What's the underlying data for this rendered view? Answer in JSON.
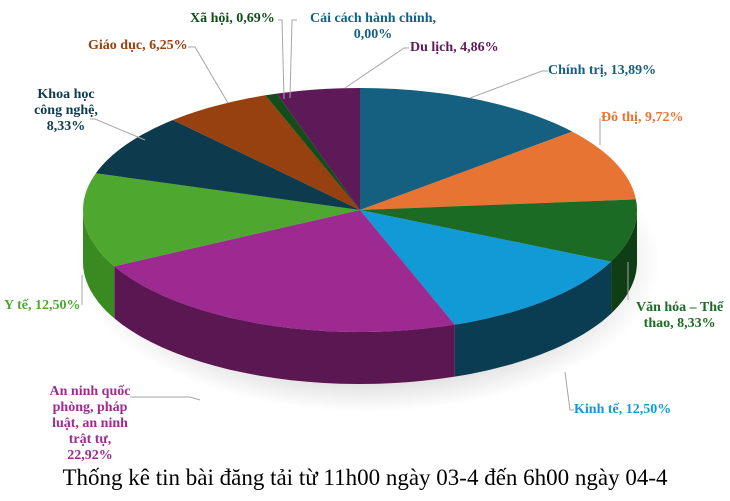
{
  "chart_data": {
    "type": "pie",
    "title": "Thống kê tin bài đăng tải từ 11h00 ngày 03-4 đến 6h00 ngày 04-4",
    "three_d": true,
    "slices": [
      {
        "label": "Chính trị",
        "value": 13.89,
        "display": "Chính trị, 13,89%",
        "color": "#155f80",
        "side": "#0e4560"
      },
      {
        "label": "Đô thị",
        "value": 9.72,
        "display": "Đô thị, 9,72%",
        "color": "#e77432",
        "side": "#a8501f"
      },
      {
        "label": "Văn hóa – Thể thao",
        "value": 8.33,
        "display": "Văn hóa – Thể thao, 8,33%",
        "color": "#1c6b25",
        "side": "#0f3d14"
      },
      {
        "label": "Kinh tế",
        "value": 12.5,
        "display": "Kinh tế, 12,50%",
        "color": "#129ad6",
        "side": "#0b3d52"
      },
      {
        "label": "An ninh quốc phòng, pháp luật, an ninh trật tự",
        "value": 22.92,
        "display": "An ninh quốc phòng, pháp luật, an ninh trật tự, 22,92%",
        "color": "#9d2a91",
        "side": "#5a1752"
      },
      {
        "label": "Y tế",
        "value": 12.5,
        "display": "Y tế, 12,50%",
        "color": "#4ea72e",
        "side": "#3a8a22"
      },
      {
        "label": "Khoa học công nghệ",
        "value": 8.33,
        "display": "Khoa học công nghệ, 8,33%",
        "color": "#0e3a4e",
        "side": "#0a2a38"
      },
      {
        "label": "Giáo dục",
        "value": 6.25,
        "display": "Giáo dục, 6,25%",
        "color": "#974010",
        "side": "#6a2c0b"
      },
      {
        "label": "Xã hội",
        "value": 0.69,
        "display": "Xã hội, 0,69%",
        "color": "#124d1a",
        "side": "#0b3010"
      },
      {
        "label": "Cải cách hành chính",
        "value": 0.0,
        "display": "Cải cách hành chính, 0,00%",
        "color": "#155f80",
        "side": "#0e4560"
      },
      {
        "label": "Du lịch",
        "value": 4.86,
        "display": "Du lịch, 4,86%",
        "color": "#5e1a58",
        "side": "#3d1039"
      }
    ],
    "legend": "none",
    "data_labels": "outside with leader lines"
  },
  "labels": {
    "chinh_tri": "Chính trị, 13,89%",
    "do_thi": "Đô thị, 9,72%",
    "van_hoa_1": "Văn hóa – Thể",
    "van_hoa_2": "thao, 8,33%",
    "kinh_te": "Kinh tế, 12,50%",
    "an_ninh_1": "An ninh quốc",
    "an_ninh_2": "phòng, pháp",
    "an_ninh_3": "luật, an ninh",
    "an_ninh_4": "trật tự,",
    "an_ninh_5": "22,92%",
    "y_te": "Y tế, 12,50%",
    "khcn_1": "Khoa học",
    "khcn_2": "công nghệ,",
    "khcn_3": "8,33%",
    "giao_duc": "Giáo dục, 6,25%",
    "xa_hoi": "Xã hội, 0,69%",
    "cchc_1": "Cải cách hành chính,",
    "cchc_2": "0,00%",
    "du_lich": "Du lịch, 4,86%"
  },
  "label_colors": {
    "chinh_tri": "#155f80",
    "do_thi": "#e77432",
    "van_hoa": "#1c6b25",
    "kinh_te": "#129ad6",
    "an_ninh": "#9d2a91",
    "y_te": "#4ea72e",
    "khcn": "#0e3a4e",
    "giao_duc": "#974010",
    "xa_hoi": "#124d1a",
    "cchc": "#155f80",
    "du_lich": "#5e1a58"
  }
}
